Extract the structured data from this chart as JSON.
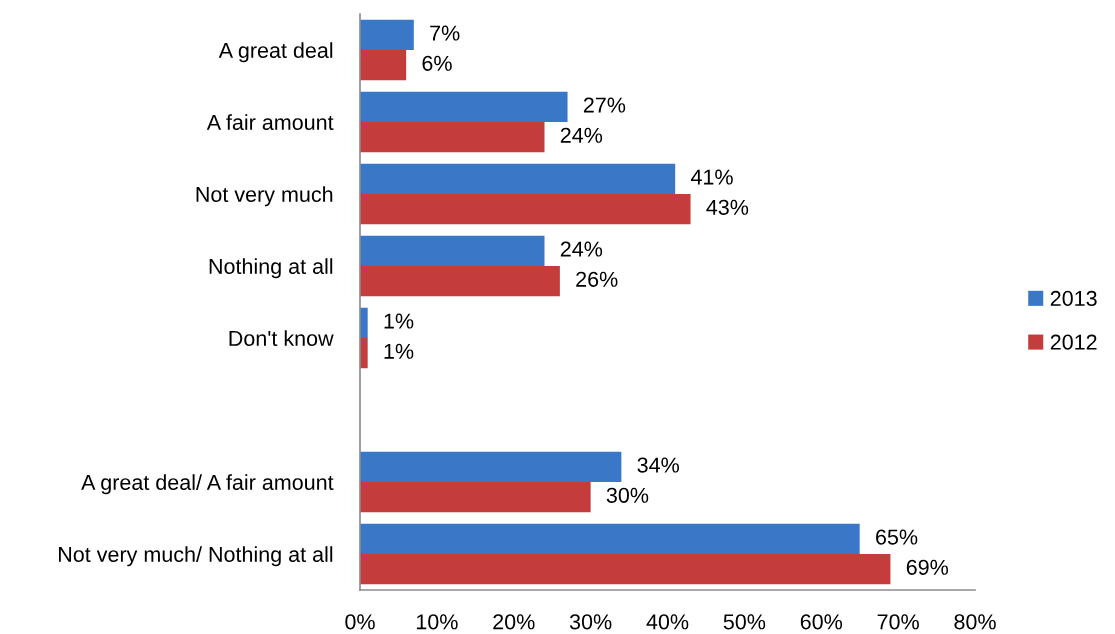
{
  "chart_data": {
    "type": "bar",
    "orientation": "horizontal",
    "categories": [
      "A great deal",
      "A fair amount",
      "Not very much",
      "Nothing at all",
      "Don't know",
      null,
      "A great deal/ A fair amount",
      "Not very much/ Nothing at all"
    ],
    "series": [
      {
        "name": "2013",
        "color": "#3a77c6",
        "values": [
          7,
          27,
          41,
          24,
          1,
          null,
          34,
          65
        ],
        "value_labels": [
          "7%",
          "27%",
          "41%",
          "24%",
          "1%",
          null,
          "34%",
          "65%"
        ]
      },
      {
        "name": "2012",
        "color": "#c43c3c",
        "values": [
          6,
          24,
          43,
          26,
          1,
          null,
          30,
          69
        ],
        "value_labels": [
          "6%",
          "24%",
          "43%",
          "26%",
          "1%",
          null,
          "30%",
          "69%"
        ]
      }
    ],
    "xlim": [
      0,
      80
    ],
    "xticks": [
      {
        "value": 0,
        "label": "0%"
      },
      {
        "value": 10,
        "label": "10%"
      },
      {
        "value": 20,
        "label": "20%"
      },
      {
        "value": 30,
        "label": "30%"
      },
      {
        "value": 40,
        "label": "40%"
      },
      {
        "value": 50,
        "label": "50%"
      },
      {
        "value": 60,
        "label": "60%"
      },
      {
        "value": 70,
        "label": "70%"
      },
      {
        "value": 80,
        "label": "80%"
      }
    ],
    "legend": "right",
    "grid": false
  }
}
